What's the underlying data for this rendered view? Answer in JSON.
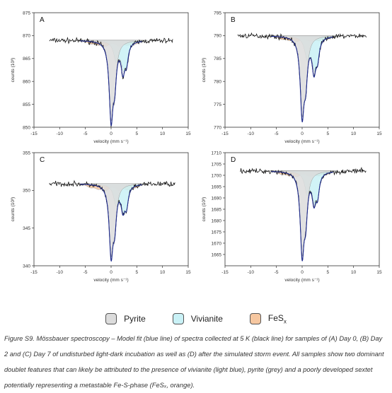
{
  "chart_data": [
    {
      "type": "line",
      "panel": "A",
      "xlabel": "velocity (mm s⁻¹)",
      "ylabel": "counts (10³)",
      "xlim": [
        -15,
        15
      ],
      "ylim": [
        850,
        875
      ],
      "xticks": [
        -15,
        -10,
        -5,
        0,
        5,
        10,
        15
      ],
      "yticks": [
        850,
        855,
        860,
        865,
        870,
        875
      ],
      "baseline": 869.0,
      "noise": 0.45,
      "x_range": [
        -12,
        12
      ],
      "peaks": [
        {
          "x": 0.0,
          "depth": 16.5,
          "width": 0.45
        },
        {
          "x": 0.7,
          "depth": 7.5,
          "width": 0.4
        },
        {
          "x": 2.3,
          "depth": 6.0,
          "width": 0.45
        },
        {
          "x": 3.0,
          "depth": 4.0,
          "width": 0.4
        }
      ],
      "components": [
        {
          "name": "Pyrite",
          "peaks": [
            {
              "x": 0.0,
              "depth": 15.5,
              "width": 0.5
            },
            {
              "x": 0.7,
              "depth": 7.0,
              "width": 0.45
            }
          ]
        },
        {
          "name": "Vivianite",
          "peaks": [
            {
              "x": 1.0,
              "depth": 4.0,
              "width": 0.6
            },
            {
              "x": 2.4,
              "depth": 5.0,
              "width": 0.6
            },
            {
              "x": 3.0,
              "depth": 3.0,
              "width": 0.5
            }
          ]
        },
        {
          "name": "FeSx",
          "peaks": [
            {
              "x": -4.0,
              "depth": 0.6,
              "width": 0.8
            },
            {
              "x": -2.5,
              "depth": 0.7,
              "width": 0.8
            },
            {
              "x": -1.0,
              "depth": 1.0,
              "width": 0.8
            },
            {
              "x": 1.5,
              "depth": 1.0,
              "width": 0.8
            },
            {
              "x": 3.2,
              "depth": 0.8,
              "width": 0.8
            },
            {
              "x": 4.8,
              "depth": 0.6,
              "width": 0.8
            }
          ]
        }
      ]
    },
    {
      "type": "line",
      "panel": "B",
      "xlabel": "velocity (mm s⁻¹)",
      "ylabel": "counts (10³)",
      "xlim": [
        -15,
        15
      ],
      "ylim": [
        770,
        795
      ],
      "xticks": [
        -15,
        -10,
        -5,
        0,
        5,
        10,
        15
      ],
      "yticks": [
        770,
        775,
        780,
        785,
        790,
        795
      ],
      "baseline": 790.0,
      "noise": 0.45,
      "x_range": [
        -12.5,
        12.5
      ],
      "peaks": [
        {
          "x": 0.0,
          "depth": 16.5,
          "width": 0.45
        },
        {
          "x": 0.7,
          "depth": 8.0,
          "width": 0.4
        },
        {
          "x": 2.3,
          "depth": 7.0,
          "width": 0.45
        },
        {
          "x": 3.0,
          "depth": 4.0,
          "width": 0.4
        }
      ],
      "components": [
        {
          "name": "Pyrite",
          "peaks": [
            {
              "x": 0.0,
              "depth": 15.5,
              "width": 0.5
            },
            {
              "x": 0.7,
              "depth": 7.5,
              "width": 0.45
            }
          ]
        },
        {
          "name": "Vivianite",
          "peaks": [
            {
              "x": 1.0,
              "depth": 4.5,
              "width": 0.6
            },
            {
              "x": 2.4,
              "depth": 6.0,
              "width": 0.6
            },
            {
              "x": 3.0,
              "depth": 3.0,
              "width": 0.5
            }
          ]
        },
        {
          "name": "FeSx",
          "peaks": [
            {
              "x": -4.0,
              "depth": 0.6,
              "width": 0.8
            },
            {
              "x": -2.5,
              "depth": 0.7,
              "width": 0.8
            },
            {
              "x": -1.0,
              "depth": 1.0,
              "width": 0.8
            },
            {
              "x": 1.5,
              "depth": 1.0,
              "width": 0.8
            },
            {
              "x": 3.2,
              "depth": 0.8,
              "width": 0.8
            },
            {
              "x": 4.8,
              "depth": 0.6,
              "width": 0.8
            }
          ]
        }
      ]
    },
    {
      "type": "line",
      "panel": "C",
      "xlabel": "velocity (mm s⁻¹)",
      "ylabel": "counts (10³)",
      "xlim": [
        -15,
        15
      ],
      "ylim": [
        340,
        355
      ],
      "xticks": [
        -15,
        -10,
        -5,
        0,
        5,
        10,
        15
      ],
      "yticks": [
        340,
        345,
        350,
        355
      ],
      "baseline": 350.9,
      "noise": 0.28,
      "x_range": [
        -12,
        12.5
      ],
      "peaks": [
        {
          "x": 0.0,
          "depth": 9.0,
          "width": 0.45
        },
        {
          "x": 0.7,
          "depth": 4.5,
          "width": 0.4
        },
        {
          "x": 2.3,
          "depth": 3.0,
          "width": 0.45
        },
        {
          "x": 3.0,
          "depth": 2.5,
          "width": 0.4
        }
      ],
      "components": [
        {
          "name": "Pyrite",
          "peaks": [
            {
              "x": 0.0,
              "depth": 8.5,
              "width": 0.5
            },
            {
              "x": 0.7,
              "depth": 4.2,
              "width": 0.45
            }
          ]
        },
        {
          "name": "Vivianite",
          "peaks": [
            {
              "x": 1.0,
              "depth": 2.5,
              "width": 0.6
            },
            {
              "x": 2.4,
              "depth": 2.8,
              "width": 0.6
            },
            {
              "x": 3.0,
              "depth": 2.0,
              "width": 0.5
            }
          ]
        },
        {
          "name": "FeSx",
          "peaks": [
            {
              "x": -4.0,
              "depth": 0.4,
              "width": 0.8
            },
            {
              "x": -2.5,
              "depth": 0.5,
              "width": 0.8
            },
            {
              "x": -1.0,
              "depth": 0.7,
              "width": 0.8
            },
            {
              "x": 1.5,
              "depth": 0.7,
              "width": 0.8
            },
            {
              "x": 3.2,
              "depth": 0.6,
              "width": 0.8
            },
            {
              "x": 4.8,
              "depth": 0.4,
              "width": 0.8
            }
          ]
        }
      ]
    },
    {
      "type": "line",
      "panel": "D",
      "xlabel": "velocity (mm s⁻¹)",
      "ylabel": "counts (10³)",
      "xlim": [
        -15,
        15
      ],
      "ylim": [
        1660,
        1710
      ],
      "xticks": [
        -15,
        -10,
        -5,
        0,
        5,
        10,
        15
      ],
      "yticks": [
        1665,
        1670,
        1675,
        1680,
        1685,
        1690,
        1695,
        1700,
        1705,
        1710
      ],
      "baseline": 1702.0,
      "noise": 0.9,
      "x_range": [
        -12,
        12.5
      ],
      "peaks": [
        {
          "x": 0.0,
          "depth": 35.0,
          "width": 0.45
        },
        {
          "x": 0.7,
          "depth": 17.0,
          "width": 0.4
        },
        {
          "x": 2.3,
          "depth": 12.0,
          "width": 0.45
        },
        {
          "x": 3.0,
          "depth": 9.0,
          "width": 0.4
        }
      ],
      "components": [
        {
          "name": "Pyrite",
          "peaks": [
            {
              "x": 0.0,
              "depth": 33.0,
              "width": 0.5
            },
            {
              "x": 0.7,
              "depth": 16.0,
              "width": 0.45
            }
          ]
        },
        {
          "name": "Vivianite",
          "peaks": [
            {
              "x": 1.0,
              "depth": 9.0,
              "width": 0.6
            },
            {
              "x": 2.4,
              "depth": 11.0,
              "width": 0.6
            },
            {
              "x": 3.0,
              "depth": 7.0,
              "width": 0.5
            }
          ]
        },
        {
          "name": "FeSx",
          "peaks": [
            {
              "x": -4.0,
              "depth": 1.2,
              "width": 0.8
            },
            {
              "x": -2.5,
              "depth": 1.5,
              "width": 0.8
            },
            {
              "x": -1.0,
              "depth": 2.0,
              "width": 0.8
            },
            {
              "x": 1.5,
              "depth": 2.0,
              "width": 0.8
            },
            {
              "x": 3.2,
              "depth": 1.6,
              "width": 0.8
            },
            {
              "x": 4.8,
              "depth": 1.2,
              "width": 0.8
            }
          ]
        }
      ]
    }
  ],
  "legend": {
    "items": [
      {
        "label": "Pyrite",
        "color": "#dcdcdc"
      },
      {
        "label": "Vivianite",
        "color": "#c9f1f6"
      },
      {
        "label": "FeS",
        "sub": "x",
        "color": "#f6c7a0"
      }
    ]
  },
  "colors": {
    "data": "#111111",
    "fit": "#1f2c8f",
    "outline": "#555555"
  },
  "caption": {
    "text": "Figure S9. Mössbauer spectroscopy – Model fit (blue line) of spectra collected at 5 K (black line) for samples of (A) Day 0, (B) Day 2 and (C) Day 7 of undisturbed light-dark incubation as well as (D) after the simulated storm event. All samples show two dominant doublet features that can likely be attributed to the presence of vivianite (light blue), pyrite (grey) and a poorly developed sextet potentially representing a metastable Fe-S-phase (FeSₓ, orange)."
  }
}
